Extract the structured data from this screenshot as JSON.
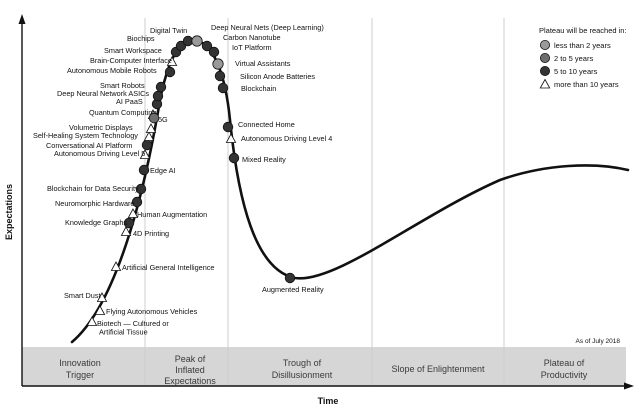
{
  "chart_data": {
    "type": "scatter",
    "title": "",
    "xlabel": "Time",
    "ylabel": "Expectations",
    "as_of": "As of July 2018",
    "phases": [
      "Innovation Trigger",
      "Peak of Inflated Expectations",
      "Trough of Disillusionment",
      "Slope of Enlightenment",
      "Plateau of Productivity"
    ],
    "legend": {
      "title": "Plateau will be reached in:",
      "items": [
        {
          "key": "lt2",
          "label": "less than 2 years",
          "color": "#9a9a9a",
          "shape": "circle"
        },
        {
          "key": "2to5",
          "label": "2 to 5 years",
          "color": "#6e6e6e",
          "shape": "circle"
        },
        {
          "key": "5to10",
          "label": "5 to 10 years",
          "color": "#333333",
          "shape": "circle"
        },
        {
          "key": "gt10",
          "label": "more than 10 years",
          "color": "#ffffff",
          "shape": "triangle"
        }
      ]
    },
    "technologies": [
      {
        "name": "Biotech — Cultured or Artificial Tissue",
        "cat": "gt10"
      },
      {
        "name": "Flying Autonomous Vehicles",
        "cat": "gt10"
      },
      {
        "name": "Smart Dust",
        "cat": "gt10"
      },
      {
        "name": "Artificial General Intelligence",
        "cat": "gt10"
      },
      {
        "name": "4D Printing",
        "cat": "gt10"
      },
      {
        "name": "Knowledge Graphs",
        "cat": "5to10"
      },
      {
        "name": "Human Augmentation",
        "cat": "gt10"
      },
      {
        "name": "Neuromorphic Hardware",
        "cat": "5to10"
      },
      {
        "name": "Blockchain for Data Security",
        "cat": "5to10"
      },
      {
        "name": "Edge AI",
        "cat": "5to10"
      },
      {
        "name": "Autonomous Driving Level 5",
        "cat": "gt10"
      },
      {
        "name": "Conversational AI Platform",
        "cat": "5to10"
      },
      {
        "name": "Self-Healing System Technology",
        "cat": "gt10"
      },
      {
        "name": "Volumetric Displays",
        "cat": "gt10"
      },
      {
        "name": "Quantum Computing",
        "cat": "gt10"
      },
      {
        "name": "5G",
        "cat": "2to5"
      },
      {
        "name": "AI PaaS",
        "cat": "5to10"
      },
      {
        "name": "Deep Neural Network ASICs",
        "cat": "5to10"
      },
      {
        "name": "Smart Robots",
        "cat": "5to10"
      },
      {
        "name": "Autonomous Mobile Robots",
        "cat": "5to10"
      },
      {
        "name": "Brain-Computer Interface",
        "cat": "gt10"
      },
      {
        "name": "Smart Workspace",
        "cat": "5to10"
      },
      {
        "name": "Biochips",
        "cat": "5to10"
      },
      {
        "name": "Digital Twin",
        "cat": "5to10"
      },
      {
        "name": "Deep Neural Nets (Deep Learning)",
        "cat": "lt2"
      },
      {
        "name": "Carbon Nanotube",
        "cat": "5to10"
      },
      {
        "name": "IoT Platform",
        "cat": "5to10"
      },
      {
        "name": "Virtual Assistants",
        "cat": "lt2"
      },
      {
        "name": "Silicon Anode Batteries",
        "cat": "5to10"
      },
      {
        "name": "Blockchain",
        "cat": "5to10"
      },
      {
        "name": "Connected Home",
        "cat": "5to10"
      },
      {
        "name": "Autonomous Driving Level 4",
        "cat": "gt10"
      },
      {
        "name": "Mixed Reality",
        "cat": "5to10"
      },
      {
        "name": "Augmented Reality",
        "cat": "5to10"
      }
    ]
  }
}
